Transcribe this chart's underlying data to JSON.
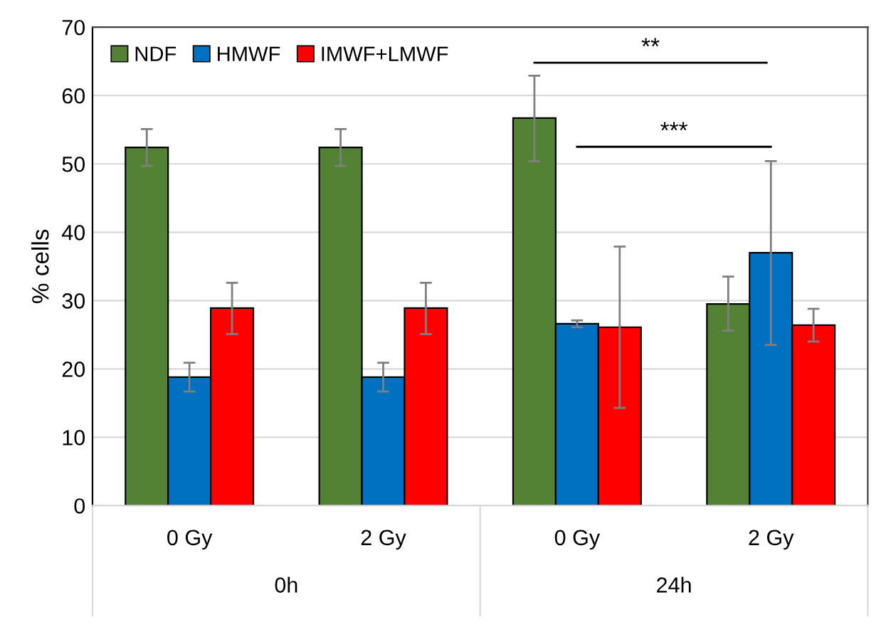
{
  "chart_data": {
    "type": "bar",
    "ylabel": "% cells",
    "categories": [
      "0 Gy",
      "2 Gy",
      "0 Gy",
      "2 Gy"
    ],
    "series": [
      {
        "name": "NDF",
        "color": "#548235",
        "values": [
          52.4,
          52.4,
          56.7,
          29.5
        ],
        "errors": [
          2.7,
          2.7,
          [
            50.4,
            62.9
          ],
          [
            25.6,
            33.5
          ]
        ]
      },
      {
        "name": "HMWF",
        "color": "#0070c0",
        "values": [
          18.8,
          18.8,
          26.6,
          37.0
        ],
        "errors": [
          2.1,
          2.1,
          0.5,
          [
            23.5,
            50.4
          ]
        ]
      },
      {
        "name": "IMWF+LMWF",
        "color": "#ff0000",
        "values": [
          28.9,
          28.9,
          26.1,
          26.4
        ],
        "errors": [
          [
            25.1,
            32.6
          ],
          [
            25.1,
            32.6
          ],
          [
            14.3,
            37.9
          ],
          [
            24.0,
            28.8
          ]
        ]
      }
    ],
    "annotations": [
      "0h",
      "24h",
      "**",
      "***"
    ],
    "ylim": [
      0,
      70
    ],
    "yticks": [
      0,
      10,
      20,
      30,
      40,
      50,
      60,
      70
    ],
    "grid": "y",
    "legend": "top left"
  }
}
